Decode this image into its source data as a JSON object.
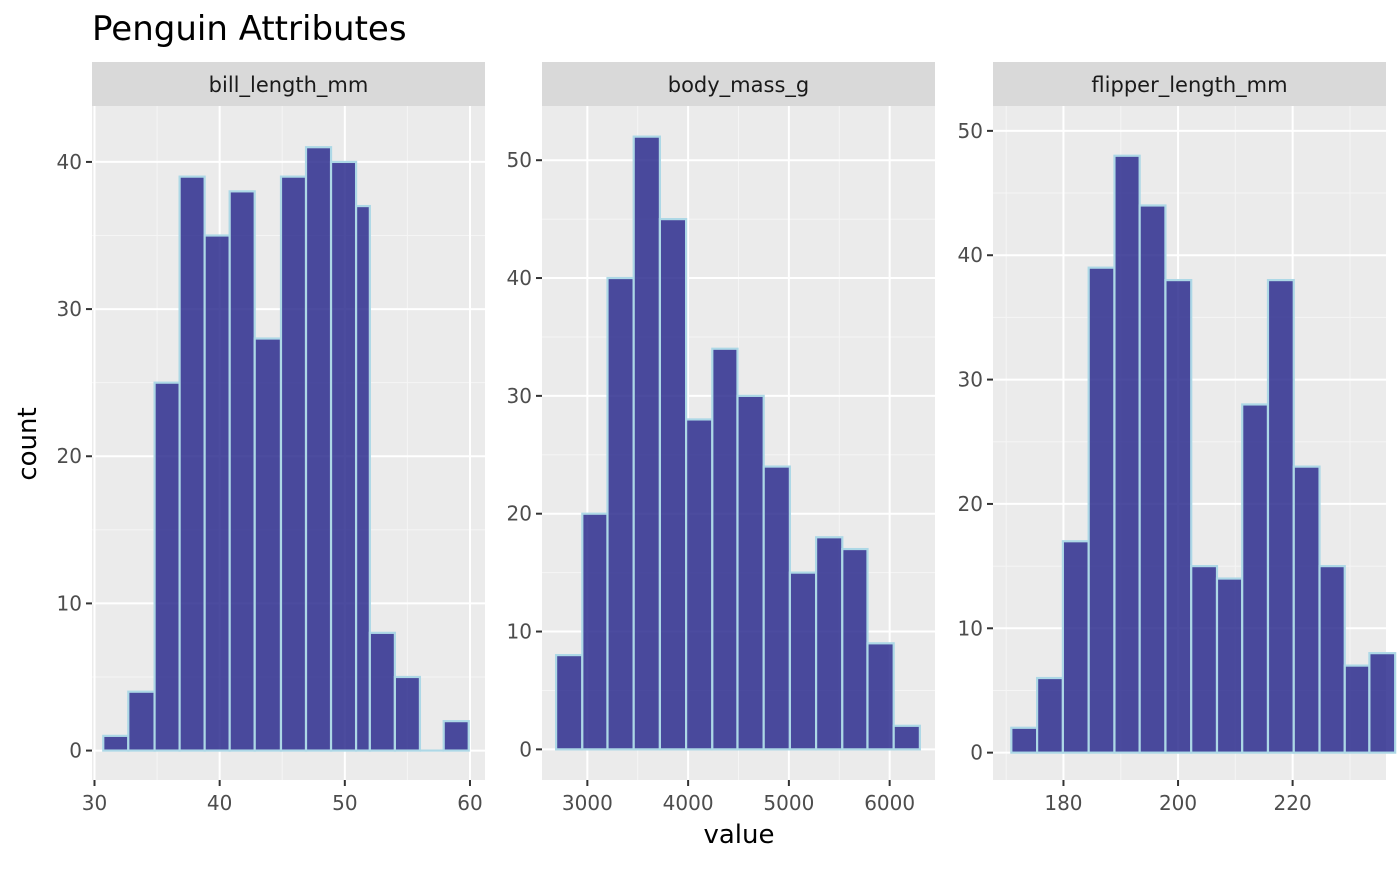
{
  "chart_data": {
    "type": "bar",
    "title": "Penguin Attributes",
    "xlabel": "value",
    "ylabel": "count",
    "grid": true,
    "bar_fill": "#2e2e8f",
    "bar_stroke": "#add8e6",
    "panel_background": "#ebebeb",
    "strip_background": "#d9d9d9",
    "panels": [
      {
        "name": "bill_length_mm",
        "xlim": [
          29.8,
          61.2
        ],
        "ylim": [
          -2,
          43.8
        ],
        "x_ticks": [
          30,
          40,
          50,
          60
        ],
        "y_ticks": [
          0,
          10,
          20,
          30,
          40
        ],
        "bins": [
          {
            "x0": 30.7,
            "x1": 32.7,
            "count": 1
          },
          {
            "x0": 32.7,
            "x1": 34.8,
            "count": 4
          },
          {
            "x0": 34.8,
            "x1": 36.8,
            "count": 25
          },
          {
            "x0": 36.8,
            "x1": 38.8,
            "count": 39
          },
          {
            "x0": 38.8,
            "x1": 40.8,
            "count": 35
          },
          {
            "x0": 40.8,
            "x1": 42.8,
            "count": 38
          },
          {
            "x0": 42.8,
            "x1": 44.9,
            "count": 28
          },
          {
            "x0": 44.9,
            "x1": 46.9,
            "count": 39
          },
          {
            "x0": 46.9,
            "x1": 48.9,
            "count": 41
          },
          {
            "x0": 48.9,
            "x1": 50.9,
            "count": 40
          },
          {
            "x0": 50.9,
            "x1": 52.0,
            "count": 37
          },
          {
            "x0": 52.0,
            "x1": 54.0,
            "count": 8
          },
          {
            "x0": 54.0,
            "x1": 56.0,
            "count": 5
          },
          {
            "x0": 56.0,
            "x1": 57.9,
            "count": 0
          },
          {
            "x0": 57.9,
            "x1": 59.9,
            "count": 2
          }
        ]
      },
      {
        "name": "body_mass_g",
        "xlim": [
          2550,
          6450
        ],
        "ylim": [
          -2.6,
          54.6
        ],
        "x_ticks": [
          3000,
          4000,
          5000,
          6000
        ],
        "y_ticks": [
          0,
          10,
          20,
          30,
          40,
          50
        ],
        "bins": [
          {
            "x0": 2690,
            "x1": 2950,
            "count": 8
          },
          {
            "x0": 2950,
            "x1": 3200,
            "count": 20
          },
          {
            "x0": 3200,
            "x1": 3460,
            "count": 40
          },
          {
            "x0": 3460,
            "x1": 3720,
            "count": 52
          },
          {
            "x0": 3720,
            "x1": 3980,
            "count": 45
          },
          {
            "x0": 3980,
            "x1": 4240,
            "count": 28
          },
          {
            "x0": 4240,
            "x1": 4490,
            "count": 34
          },
          {
            "x0": 4490,
            "x1": 4750,
            "count": 30
          },
          {
            "x0": 4750,
            "x1": 5010,
            "count": 24
          },
          {
            "x0": 5010,
            "x1": 5270,
            "count": 15
          },
          {
            "x0": 5270,
            "x1": 5530,
            "count": 18
          },
          {
            "x0": 5530,
            "x1": 5780,
            "count": 17
          },
          {
            "x0": 5780,
            "x1": 6040,
            "count": 9
          },
          {
            "x0": 6040,
            "x1": 6300,
            "count": 2
          }
        ]
      },
      {
        "name": "flipper_length_mm",
        "xlim": [
          167.7,
          236.3
        ],
        "ylim": [
          -2.2,
          52
        ],
        "x_ticks": [
          180,
          200,
          220
        ],
        "y_ticks": [
          0,
          10,
          20,
          30,
          40,
          50
        ],
        "bins": [
          {
            "x0": 170.9,
            "x1": 175.4,
            "count": 2
          },
          {
            "x0": 175.4,
            "x1": 179.9,
            "count": 6
          },
          {
            "x0": 179.9,
            "x1": 184.4,
            "count": 17
          },
          {
            "x0": 184.4,
            "x1": 188.9,
            "count": 39
          },
          {
            "x0": 188.9,
            "x1": 193.3,
            "count": 48
          },
          {
            "x0": 193.3,
            "x1": 197.8,
            "count": 44
          },
          {
            "x0": 197.8,
            "x1": 202.3,
            "count": 38
          },
          {
            "x0": 202.3,
            "x1": 206.8,
            "count": 15
          },
          {
            "x0": 206.8,
            "x1": 211.2,
            "count": 14
          },
          {
            "x0": 211.2,
            "x1": 215.7,
            "count": 28
          },
          {
            "x0": 215.7,
            "x1": 220.2,
            "count": 38
          },
          {
            "x0": 220.2,
            "x1": 224.7,
            "count": 23
          },
          {
            "x0": 224.7,
            "x1": 229.1,
            "count": 15
          },
          {
            "x0": 229.1,
            "x1": 233.4,
            "count": 7
          },
          {
            "x0": 233.4,
            "x1": 237.9,
            "count": 8
          }
        ]
      }
    ]
  }
}
